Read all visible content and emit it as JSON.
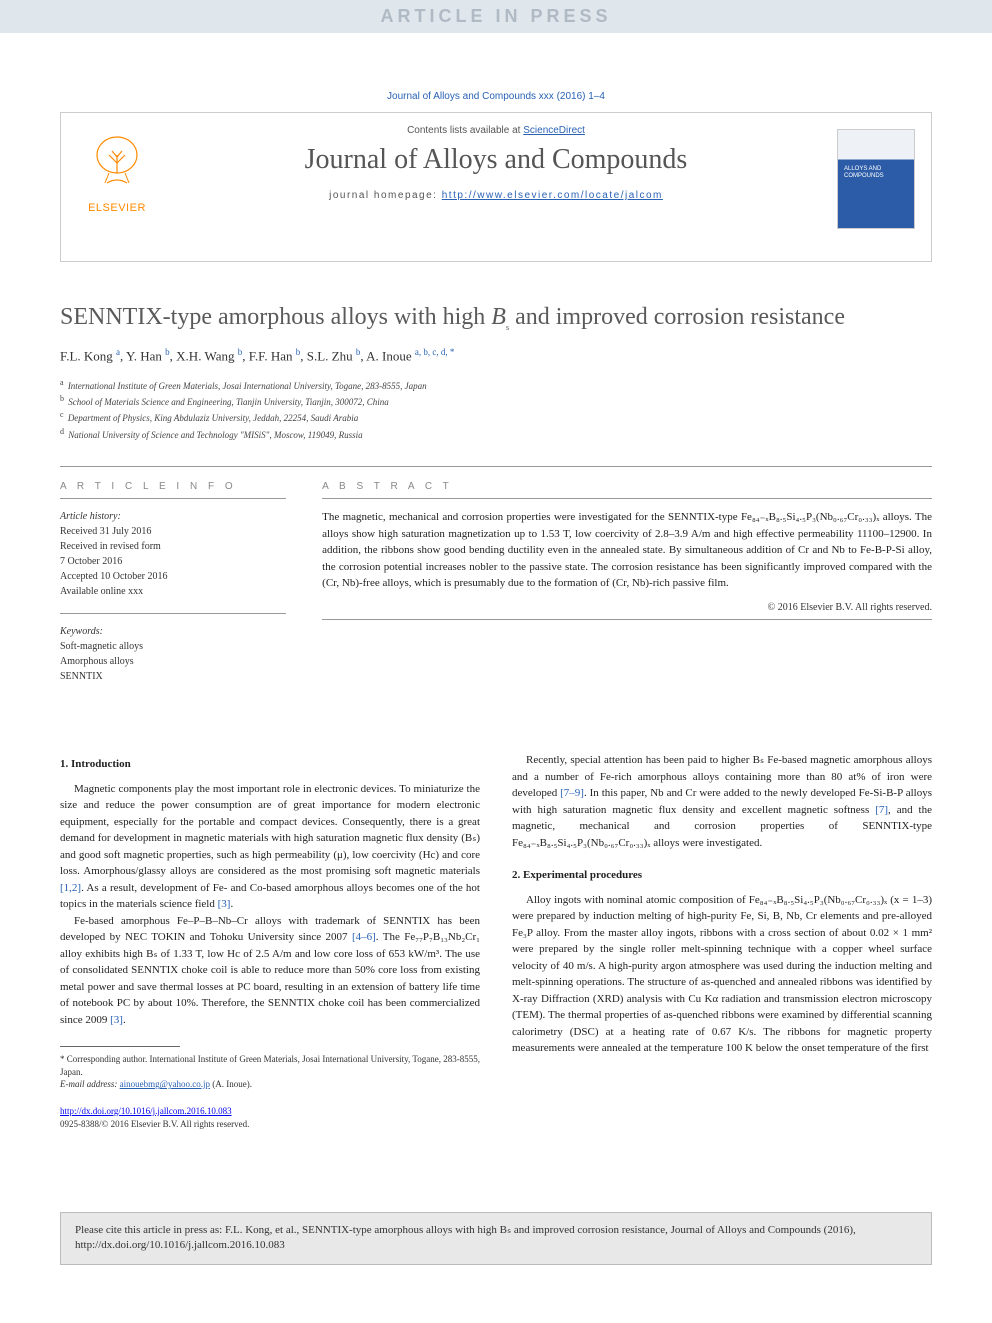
{
  "banner": "ARTICLE IN PRESS",
  "citation_top": "Journal of Alloys and Compounds xxx (2016) 1–4",
  "header": {
    "contents_prefix": "Contents lists available at ",
    "contents_link": "ScienceDirect",
    "journal": "Journal of Alloys and Compounds",
    "homepage_prefix": "journal homepage: ",
    "homepage_url": "http://www.elsevier.com/locate/jalcom",
    "publisher": "ELSEVIER",
    "cover_label": "ALLOYS AND COMPOUNDS"
  },
  "title_pre": "SENNTIX-type amorphous alloys with high ",
  "title_var": "B",
  "title_sub": "s",
  "title_post": " and improved corrosion resistance",
  "authors_html": "F.L. Kong|a|, Y. Han|b|, X.H. Wang|b|, F.F. Han|b|, S.L. Zhu|b|, A. Inoue|a, b, c, d, *",
  "authors": [
    {
      "name": "F.L. Kong",
      "sup": "a"
    },
    {
      "name": "Y. Han",
      "sup": "b"
    },
    {
      "name": "X.H. Wang",
      "sup": "b"
    },
    {
      "name": "F.F. Han",
      "sup": "b"
    },
    {
      "name": "S.L. Zhu",
      "sup": "b"
    },
    {
      "name": "A. Inoue",
      "sup": "a, b, c, d, *"
    }
  ],
  "affiliations": [
    {
      "sup": "a",
      "text": "International Institute of Green Materials, Josai International University, Togane, 283-8555, Japan"
    },
    {
      "sup": "b",
      "text": "School of Materials Science and Engineering, Tianjin University, Tianjin, 300072, China"
    },
    {
      "sup": "c",
      "text": "Department of Physics, King Abdulaziz University, Jeddah, 22254, Saudi Arabia"
    },
    {
      "sup": "d",
      "text": "National University of Science and Technology \"MISiS\", Moscow, 119049, Russia"
    }
  ],
  "article_info": {
    "heading": "A R T I C L E   I N F O",
    "history_label": "Article history:",
    "history": [
      "Received 31 July 2016",
      "Received in revised form",
      "7 October 2016",
      "Accepted 10 October 2016",
      "Available online xxx"
    ],
    "keywords_label": "Keywords:",
    "keywords": [
      "Soft-magnetic alloys",
      "Amorphous alloys",
      "SENNTIX"
    ]
  },
  "abstract": {
    "heading": "A B S T R A C T",
    "text": "The magnetic, mechanical and corrosion properties were investigated for the SENNTIX-type Fe₈₄₋ₓB₈.₅Si₄.₅P₃(Nb₀.₆₇Cr₀.₃₃)ₓ alloys. The alloys show high saturation magnetization up to 1.53 T, low coercivity of 2.8–3.9 A/m and high effective permeability 11100–12900. In addition, the ribbons show good bending ductility even in the annealed state. By simultaneous addition of Cr and Nb to Fe-B-P-Si alloy, the corrosion potential increases nobler to the passive state. The corrosion resistance has been significantly improved compared with the (Cr, Nb)-free alloys, which is presumably due to the formation of (Cr, Nb)-rich passive film.",
    "copyright": "© 2016 Elsevier B.V. All rights reserved."
  },
  "body": {
    "sec1_title": "1. Introduction",
    "p1": "Magnetic components play the most important role in electronic devices. To miniaturize the size and reduce the power consumption are of great importance for modern electronic equipment, especially for the portable and compact devices. Consequently, there is a great demand for development in magnetic materials with high saturation magnetic flux density (Bₛ) and good soft magnetic properties, such as high permeability (μ), low coercivity (Hc) and core loss. Amorphous/glassy alloys are considered as the most promising soft magnetic materials [1,2]. As a result, development of Fe- and Co-based amorphous alloys becomes one of the hot topics in the materials science field [3].",
    "p2": "Fe-based amorphous Fe–P–B–Nb–Cr alloys with trademark of SENNTIX has been developed by NEC TOKIN and Tohoku University since 2007 [4–6]. The Fe₇₇P₇B₁₃Nb₂Cr₁ alloy exhibits high Bₛ of 1.33 T, low Hc of 2.5 A/m and low core loss of 653 kW/m³. The use of consolidated SENNTIX choke coil is able to reduce more than 50% core loss from existing metal power and save thermal losses at PC board, resulting in an extension of battery life time of notebook PC by about 10%. Therefore, the SENNTIX choke coil has been commercialized since 2009 [3].",
    "p3": "Recently, special attention has been paid to higher Bₛ Fe-based magnetic amorphous alloys and a number of Fe-rich amorphous alloys containing more than 80 at% of iron were developed [7–9]. In this paper, Nb and Cr were added to the newly developed Fe-Si-B-P alloys with high saturation magnetic flux density and excellent magnetic softness [7], and the magnetic, mechanical and corrosion properties of SENNTIX-type Fe₈₄₋ₓB₈.₅Si₄.₅P₃(Nb₀.₆₇Cr₀.₃₃)ₓ alloys were investigated.",
    "sec2_title": "2. Experimental procedures",
    "p4": "Alloy ingots with nominal atomic composition of Fe₈₄₋ₓB₈.₅Si₄.₅P₃(Nb₀.₆₇Cr₀.₃₃)ₓ (x = 1–3) were prepared by induction melting of high-purity Fe, Si, B, Nb, Cr elements and pre-alloyed Fe₃P alloy. From the master alloy ingots, ribbons with a cross section of about 0.02 × 1 mm² were prepared by the single roller melt-spinning technique with a copper wheel surface velocity of 40 m/s. A high-purity argon atmosphere was used during the induction melting and melt-spinning operations. The structure of as-quenched and annealed ribbons was identified by X-ray Diffraction (XRD) analysis with Cu Kα radiation and transmission electron microscopy (TEM). The thermal properties of as-quenched ribbons were examined by differential scanning calorimetry (DSC) at a heating rate of 0.67 K/s. The ribbons for magnetic property measurements were annealed at the temperature 100 K below the onset temperature of the first"
  },
  "footnote": {
    "corr": "* Corresponding author. International Institute of Green Materials, Josai International University, Togane, 283-8555, Japan.",
    "email_label": "E-mail address: ",
    "email": "ainouebmg@yahoo.co.jp",
    "email_who": " (A. Inoue)."
  },
  "doi": {
    "url": "http://dx.doi.org/10.1016/j.jallcom.2016.10.083",
    "issn": "0925-8388/© 2016 Elsevier B.V. All rights reserved."
  },
  "cite_box": "Please cite this article in press as: F.L. Kong, et al., SENNTIX-type amorphous alloys with high Bₛ and improved corrosion resistance, Journal of Alloys and Compounds (2016), http://dx.doi.org/10.1016/j.jallcom.2016.10.083",
  "colors": {
    "link": "#2962b5",
    "banner_bg": "#dfe6ec",
    "banner_fg": "#b0bac4",
    "elsevier": "#ff8a00",
    "cover_blue": "#2c5ca8"
  }
}
